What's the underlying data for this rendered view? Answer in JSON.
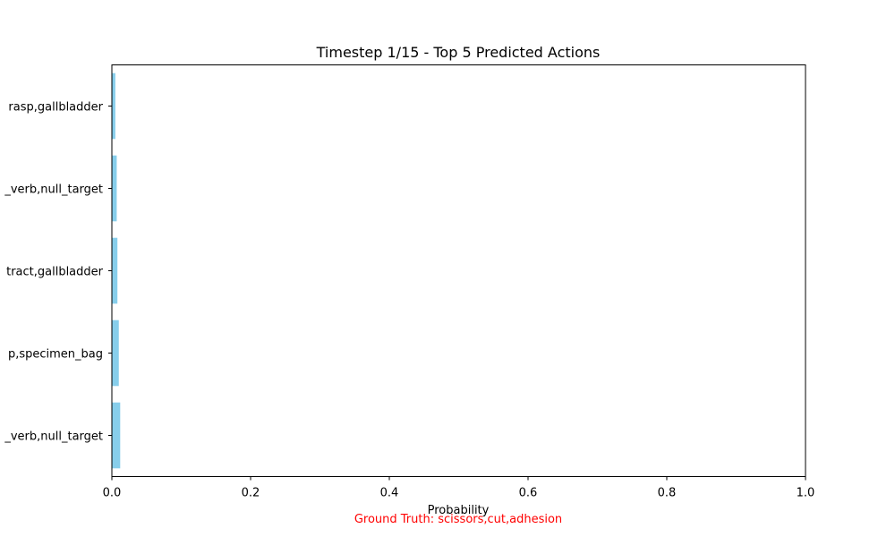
{
  "chart_data": {
    "type": "bar",
    "orientation": "horizontal",
    "title": "Timestep 1/15 - Top 5 Predicted Actions",
    "xlabel": "Probability",
    "ylabel": "",
    "xlim": [
      0,
      1
    ],
    "xticks": [
      "0.0",
      "0.2",
      "0.4",
      "0.6",
      "0.8",
      "1.0"
    ],
    "categories_top_to_bottom": [
      "grasper,grasp,gallbladder",
      "grasper,null_verb,null_target",
      "grasper,retract,gallbladder",
      "grasper,grasp,specimen_bag",
      "bipolar,null_verb,null_target"
    ],
    "visible_tick_labels_top_to_bottom": [
      "rasp,gallbladder",
      "_verb,null_target",
      "tract,gallbladder",
      "p,specimen_bag",
      "_verb,null_target"
    ],
    "values_top_to_bottom": [
      0.005,
      0.007,
      0.008,
      0.01,
      0.012
    ],
    "bar_color": "#87CEEB",
    "grid": false,
    "legend": "none",
    "footnote": "Ground Truth: scissors,cut,adhesion",
    "footnote_color": "#ff0000"
  }
}
